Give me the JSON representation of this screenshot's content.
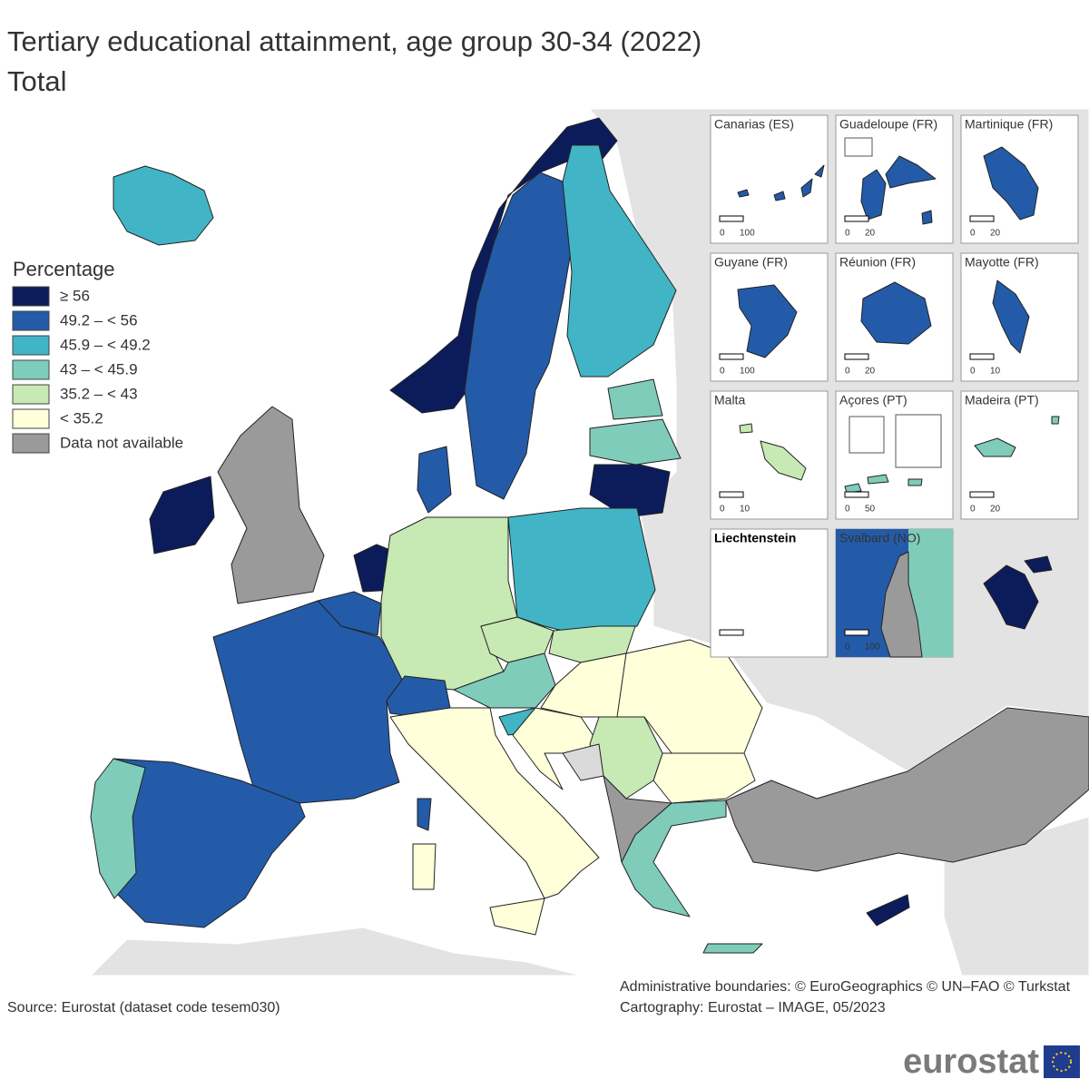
{
  "header": {
    "title": "Tertiary educational attainment, age group 30-34 (2022)",
    "subtitle": "Total"
  },
  "legend": {
    "title": "Percentage",
    "items": [
      {
        "label": "≥ 56",
        "color": "#0c1c5a"
      },
      {
        "label": "49.2 – < 56",
        "color": "#235ba8"
      },
      {
        "label": "45.9 – < 49.2",
        "color": "#41b5c5"
      },
      {
        "label": "43 – < 45.9",
        "color": "#7fccbb"
      },
      {
        "label": "35.2 – < 43",
        "color": "#c7e9b4"
      },
      {
        "label": "< 35.2",
        "color": "#ffffd9"
      },
      {
        "label": "Data not available",
        "color": "#9a9a9a"
      }
    ]
  },
  "insets": [
    {
      "title": "Canarias (ES)",
      "scale": [
        0,
        100
      ]
    },
    {
      "title": "Guadeloupe (FR)",
      "scale": [
        0,
        20
      ]
    },
    {
      "title": "Martinique (FR)",
      "scale": [
        0,
        20
      ]
    },
    {
      "title": "Guyane (FR)",
      "scale": [
        0,
        100
      ]
    },
    {
      "title": "Réunion (FR)",
      "scale": [
        0,
        20
      ]
    },
    {
      "title": "Mayotte (FR)",
      "scale": [
        0,
        10
      ]
    },
    {
      "title": "Malta",
      "scale": [
        0,
        10
      ]
    },
    {
      "title": "Açores (PT)",
      "scale": [
        0,
        50
      ]
    },
    {
      "title": "Madeira (PT)",
      "scale": [
        0,
        20
      ]
    },
    {
      "title": "Liechtenstein",
      "scale": []
    },
    {
      "title": "Svalbard (NO)",
      "scale": [
        0,
        100
      ]
    }
  ],
  "footer": {
    "boundaries": "Administrative boundaries: © EuroGeographics © UN–FAO © Turkstat",
    "cartography": "Cartography: Eurostat – IMAGE, 05/2023",
    "source": "Source: Eurostat (dataset code tesem030)",
    "logo": "eurostat"
  }
}
